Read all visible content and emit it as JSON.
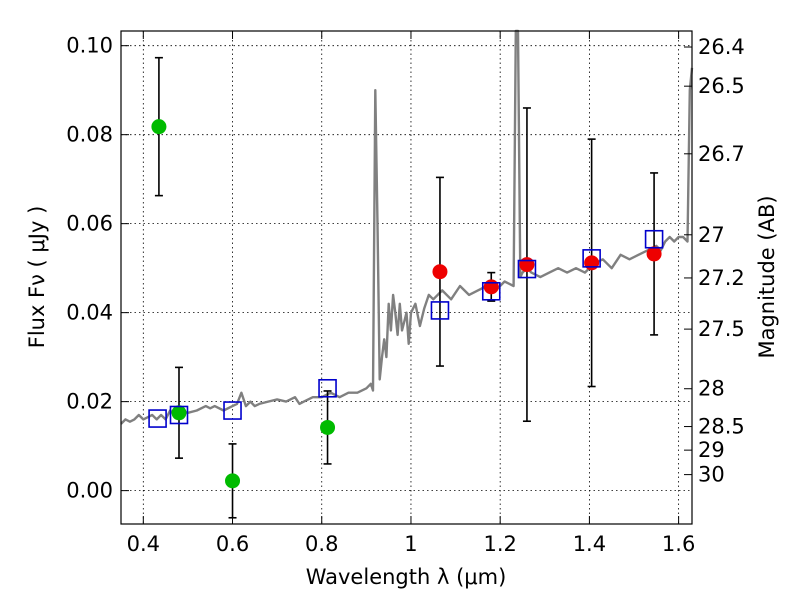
{
  "chart_data": {
    "type": "scatter",
    "xlabel": "Wavelength  λ (μm)",
    "ylabel": "Flux  Fν  ( μJy )",
    "ylabel_right": "Magnitude (AB)",
    "xlim": [
      0.35,
      1.63
    ],
    "ylim": [
      -0.0075,
      0.1033
    ],
    "x_ticks": [
      0.4,
      0.6,
      0.8,
      1.0,
      1.2,
      1.4,
      1.6
    ],
    "x_tick_labels": [
      "0.4",
      "0.6",
      "0.8",
      "1",
      "1.2",
      "1.4",
      "1.6"
    ],
    "y_ticks": [
      0.0,
      0.02,
      0.04,
      0.06,
      0.08,
      0.1
    ],
    "y_tick_labels": [
      "0.00",
      "0.02",
      "0.04",
      "0.06",
      "0.08",
      "0.10"
    ],
    "right_ticks": [
      {
        "label": "26.4",
        "flux": 0.0997
      },
      {
        "label": "26.5",
        "flux": 0.0909
      },
      {
        "label": "26.7",
        "flux": 0.0757
      },
      {
        "label": "27",
        "flux": 0.0575
      },
      {
        "label": "27.2",
        "flux": 0.0478
      },
      {
        "label": "27.5",
        "flux": 0.0363
      },
      {
        "label": "28",
        "flux": 0.0229
      },
      {
        "label": "28.5",
        "flux": 0.0144
      },
      {
        "label": "29",
        "flux": 0.0091
      },
      {
        "label": "30",
        "flux": 0.0036
      }
    ],
    "grid": true,
    "colors": {
      "model": "#808080",
      "green_points": "#00bb00",
      "red_points": "#ee0000",
      "model_photometry": "#0000cc",
      "error_bars": "#000000"
    },
    "series": [
      {
        "kind": "line",
        "x": [
          0.35,
          0.36,
          0.37,
          0.38,
          0.39,
          0.4,
          0.41,
          0.42,
          0.43,
          0.44,
          0.45,
          0.46,
          0.47,
          0.48,
          0.5,
          0.52,
          0.54,
          0.55,
          0.56,
          0.58,
          0.6,
          0.61,
          0.62,
          0.63,
          0.64,
          0.65,
          0.66,
          0.68,
          0.7,
          0.72,
          0.74,
          0.75,
          0.76,
          0.78,
          0.8,
          0.82,
          0.84,
          0.86,
          0.88,
          0.9,
          0.91,
          0.915,
          0.92,
          0.925,
          0.93,
          0.935,
          0.94,
          0.945,
          0.95,
          0.955,
          0.96,
          0.965,
          0.97,
          0.975,
          0.98,
          0.985,
          0.99,
          0.995,
          1.0,
          1.01,
          1.02,
          1.03,
          1.04,
          1.05,
          1.07,
          1.09,
          1.11,
          1.13,
          1.15,
          1.17,
          1.19,
          1.21,
          1.23,
          1.235,
          1.24,
          1.245,
          1.25,
          1.26,
          1.27,
          1.29,
          1.31,
          1.33,
          1.35,
          1.37,
          1.39,
          1.41,
          1.43,
          1.45,
          1.47,
          1.49,
          1.51,
          1.53,
          1.55,
          1.56,
          1.57,
          1.58,
          1.59,
          1.6,
          1.61,
          1.62,
          1.625,
          1.63
        ],
        "y": [
          0.015,
          0.016,
          0.0155,
          0.016,
          0.017,
          0.016,
          0.0165,
          0.017,
          0.016,
          0.017,
          0.016,
          0.018,
          0.017,
          0.018,
          0.0175,
          0.018,
          0.019,
          0.0185,
          0.019,
          0.018,
          0.019,
          0.0195,
          0.022,
          0.019,
          0.02,
          0.019,
          0.0195,
          0.02,
          0.0205,
          0.02,
          0.021,
          0.0195,
          0.02,
          0.021,
          0.021,
          0.022,
          0.021,
          0.022,
          0.022,
          0.023,
          0.024,
          0.0225,
          0.09,
          0.06,
          0.025,
          0.03,
          0.034,
          0.03,
          0.042,
          0.036,
          0.044,
          0.04,
          0.035,
          0.042,
          0.036,
          0.038,
          0.04,
          0.033,
          0.04,
          0.042,
          0.037,
          0.041,
          0.044,
          0.043,
          0.045,
          0.043,
          0.046,
          0.044,
          0.045,
          0.046,
          0.045,
          0.047,
          0.046,
          0.1033,
          0.1033,
          0.048,
          0.049,
          0.05,
          0.049,
          0.048,
          0.049,
          0.05,
          0.049,
          0.05,
          0.049,
          0.051,
          0.052,
          0.05,
          0.053,
          0.052,
          0.053,
          0.054,
          0.055,
          0.054,
          0.056,
          0.057,
          0.056,
          0.057,
          0.057,
          0.056,
          0.09,
          0.095
        ]
      },
      {
        "kind": "points",
        "marker": "circle",
        "color": "green",
        "x": [
          0.435,
          0.48,
          0.6,
          0.813
        ],
        "y": [
          0.0818,
          0.0175,
          0.0022,
          0.0142
        ],
        "err": [
          0.0155,
          0.0102,
          0.0083,
          0.0082
        ]
      },
      {
        "kind": "points",
        "marker": "circle",
        "color": "red",
        "x": [
          1.065,
          1.18,
          1.26,
          1.405,
          1.545
        ],
        "y": [
          0.0492,
          0.0458,
          0.0508,
          0.0512,
          0.0532
        ],
        "err": [
          0.0212,
          0.0032,
          0.0352,
          0.0278,
          0.0182
        ]
      },
      {
        "kind": "points",
        "marker": "square",
        "color": "blue",
        "x": [
          0.432,
          0.48,
          0.6,
          0.813,
          1.065,
          1.18,
          1.26,
          1.405,
          1.545
        ],
        "y": [
          0.0162,
          0.017,
          0.018,
          0.023,
          0.0405,
          0.0448,
          0.0498,
          0.0522,
          0.0565
        ]
      }
    ]
  }
}
